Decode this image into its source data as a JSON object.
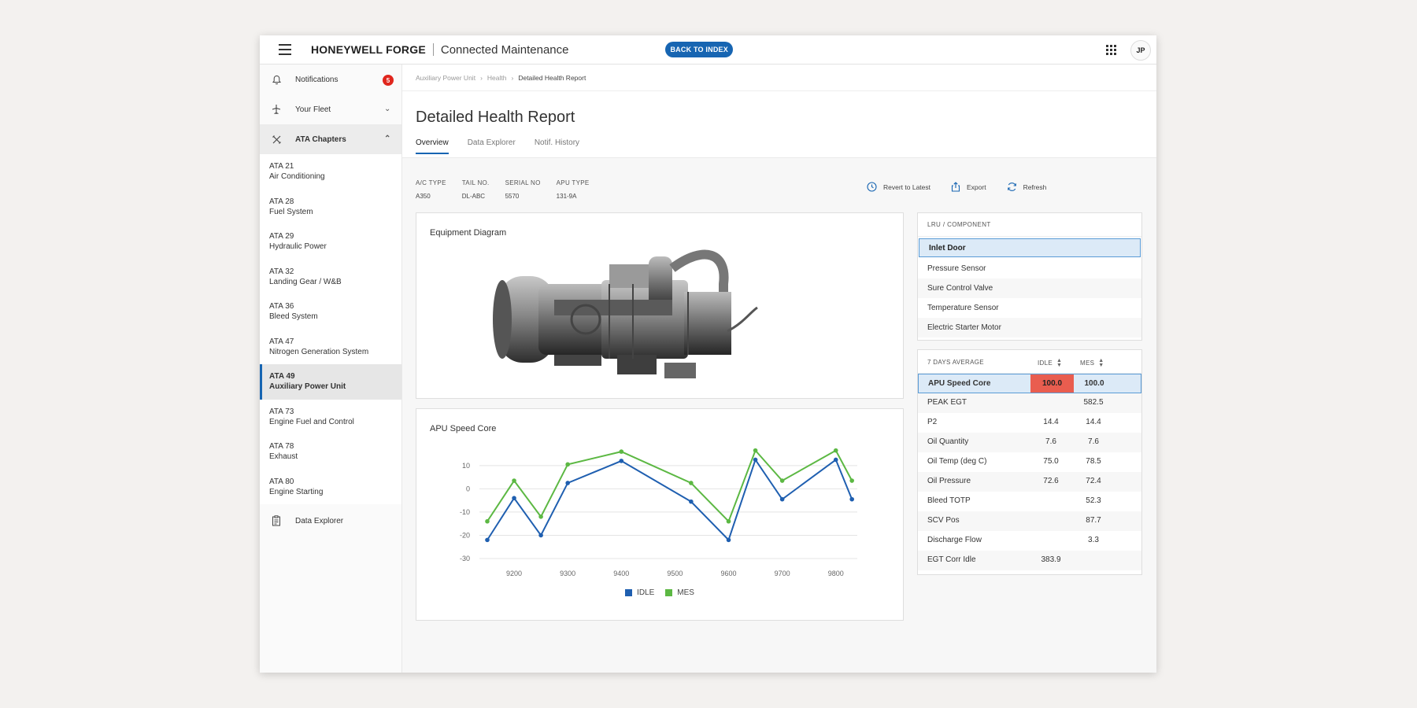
{
  "topbar": {
    "brand": "HONEYWELL FORGE",
    "app_name": "Connected Maintenance",
    "back_button": "BACK TO INDEX",
    "avatar_initials": "JP"
  },
  "sidebar": {
    "notifications": {
      "label": "Notifications",
      "count": "5"
    },
    "fleet": {
      "label": "Your Fleet"
    },
    "ata": {
      "label": "ATA Chapters"
    },
    "chapters": [
      {
        "code": "ATA 21",
        "name": "Air Conditioning"
      },
      {
        "code": "ATA 28",
        "name": "Fuel System"
      },
      {
        "code": "ATA 29",
        "name": "Hydraulic Power"
      },
      {
        "code": "ATA 32",
        "name": "Landing Gear / W&B"
      },
      {
        "code": "ATA 36",
        "name": "Bleed System"
      },
      {
        "code": "ATA 47",
        "name": "Nitrogen Generation System"
      },
      {
        "code": "ATA 49",
        "name": "Auxiliary Power Unit"
      },
      {
        "code": "ATA 73",
        "name": "Engine Fuel and Control"
      },
      {
        "code": "ATA 78",
        "name": "Exhaust"
      },
      {
        "code": "ATA 80",
        "name": "Engine Starting"
      }
    ],
    "data_explorer": "Data Explorer"
  },
  "breadcrumb": [
    "Auxiliary Power Unit",
    "Health",
    "Detailed Health Report"
  ],
  "page_title": "Detailed Health Report",
  "tabs": [
    "Overview",
    "Data Explorer",
    "Notif. History"
  ],
  "meta": [
    {
      "label": "A/C TYPE",
      "value": "A350"
    },
    {
      "label": "TAIL NO.",
      "value": "DL-ABC"
    },
    {
      "label": "SERIAL NO",
      "value": "5570"
    },
    {
      "label": "APU TYPE",
      "value": "131-9A"
    }
  ],
  "actions": {
    "revert": "Revert to Latest",
    "export": "Export",
    "refresh": "Refresh"
  },
  "equipment_title": "Equipment Diagram",
  "components": {
    "header": "LRU / COMPONENT",
    "items": [
      "Inlet Door",
      "Pressure Sensor",
      "Sure Control Valve",
      "Temperature Sensor",
      "Electric Starter Motor"
    ]
  },
  "metrics": {
    "header": {
      "name": "7 DAYS AVERAGE",
      "idle": "IDLE",
      "mes": "MES"
    },
    "rows": [
      {
        "name": "APU Speed Core",
        "idle": "100.0",
        "mes": "100.0"
      },
      {
        "name": "PEAK EGT",
        "idle": "",
        "mes": "582.5"
      },
      {
        "name": "P2",
        "idle": "14.4",
        "mes": "14.4"
      },
      {
        "name": "Oil Quantity",
        "idle": "7.6",
        "mes": "7.6"
      },
      {
        "name": "Oil Temp (deg C)",
        "idle": "75.0",
        "mes": "78.5"
      },
      {
        "name": "Oil Pressure",
        "idle": "72.6",
        "mes": "72.4"
      },
      {
        "name": "Bleed TOTP",
        "idle": "",
        "mes": "52.3"
      },
      {
        "name": "SCV Pos",
        "idle": "",
        "mes": "87.7"
      },
      {
        "name": "Discharge Flow",
        "idle": "",
        "mes": "3.3"
      },
      {
        "name": "EGT Corr Idle",
        "idle": "383.9",
        "mes": ""
      }
    ]
  },
  "colors": {
    "accent": "#1765b2",
    "idle": "#1f5fb0",
    "mes": "#5cb843",
    "alert": "#e95d4f"
  },
  "chart_data": {
    "type": "line",
    "title": "APU Speed Core",
    "x": [
      9150,
      9200,
      9250,
      9300,
      9400,
      9530,
      9600,
      9650,
      9700,
      9800,
      9830
    ],
    "x_ticks": [
      "9200",
      "9300",
      "9400",
      "9500",
      "9600",
      "9700",
      "9800"
    ],
    "x_tick_values": [
      9200,
      9300,
      9400,
      9500,
      9600,
      9700,
      9800
    ],
    "y_ticks": [
      "10",
      "0",
      "-10",
      "-20",
      "-30"
    ],
    "y_tick_values": [
      10,
      0,
      -10,
      -20,
      -30
    ],
    "ylim": [
      -30,
      14
    ],
    "xlim": [
      9150,
      9840
    ],
    "series": [
      {
        "name": "IDLE",
        "color": "#1f5fb0",
        "values": [
          -22,
          -4,
          -20,
          2.5,
          12,
          -5.5,
          -22,
          12.5,
          -4.5,
          12.5,
          -4.5
        ]
      },
      {
        "name": "MES",
        "color": "#5cb843",
        "values": [
          -14,
          3.5,
          -12,
          10.5,
          16,
          2.5,
          -14,
          16.5,
          3.5,
          16.5,
          3.5
        ]
      }
    ]
  }
}
